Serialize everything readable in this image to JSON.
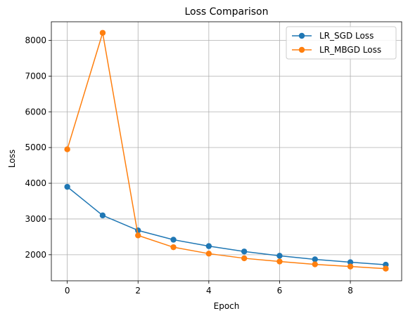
{
  "chart_data": {
    "type": "line",
    "title": "Loss Comparison",
    "xlabel": "Epoch",
    "ylabel": "Loss",
    "x": [
      0,
      1,
      2,
      3,
      4,
      5,
      6,
      7,
      8,
      9
    ],
    "xticks": [
      0,
      2,
      4,
      6,
      8
    ],
    "yticks": [
      2000,
      3000,
      4000,
      5000,
      6000,
      7000,
      8000
    ],
    "xlim": [
      -0.45,
      9.45
    ],
    "ylim": [
      1270,
      8520
    ],
    "grid": true,
    "legend_position": "top-right",
    "series": [
      {
        "name": "LR_SGD Loss",
        "color": "#1f77b4",
        "values": [
          3900,
          3100,
          2680,
          2420,
          2240,
          2090,
          1970,
          1870,
          1790,
          1720
        ]
      },
      {
        "name": "LR_MBGD Loss",
        "color": "#ff7f0e",
        "values": [
          4950,
          8210,
          2540,
          2210,
          2030,
          1900,
          1810,
          1730,
          1670,
          1610
        ]
      }
    ]
  }
}
